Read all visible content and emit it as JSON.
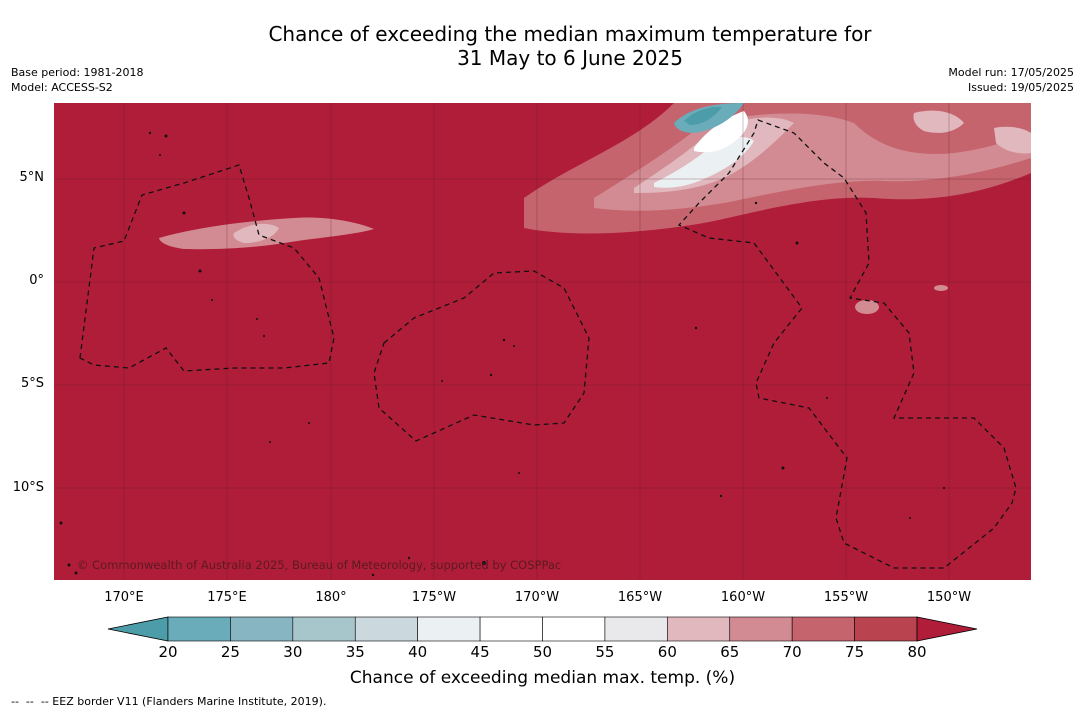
{
  "header": {
    "title_line1": "Chance of exceeding the median maximum temperature for",
    "title_line2": "31 May to 6 June 2025",
    "base_period": "Base period: 1981-2018",
    "model": "Model: ACCESS-S2",
    "model_run": "Model run: 17/05/2025",
    "issued": "Issued: 19/05/2025"
  },
  "map": {
    "lat_labels": [
      "5°N",
      "0°",
      "5°S",
      "10°S"
    ],
    "lon_labels": [
      "170°E",
      "175°E",
      "180°",
      "175°W",
      "170°W",
      "165°W",
      "160°W",
      "155°W",
      "150°W"
    ],
    "copyright": "© Commonwealth of Australia 2025, Bureau of Meteorology, supported by COSPPac",
    "background_color": "#b01d39"
  },
  "colorbar": {
    "ticks": [
      "20",
      "25",
      "30",
      "35",
      "40",
      "45",
      "50",
      "55",
      "60",
      "65",
      "70",
      "75",
      "80"
    ],
    "colors": [
      "#4c9ca9",
      "#6aacba",
      "#87b6c2",
      "#a6c6cb",
      "#cbd8de",
      "#ebf0f3",
      "#ffffff",
      "#ffffff",
      "#e9e8ea",
      "#e0b8bd",
      "#d28b92",
      "#c6646d",
      "#b94450",
      "#b01d39"
    ],
    "label": "Chance of exceeding median max. temp. (%)"
  },
  "footer": {
    "legend_text": "--  --  -- EEZ border V11 (Flanders Marine Institute, 2019)."
  }
}
